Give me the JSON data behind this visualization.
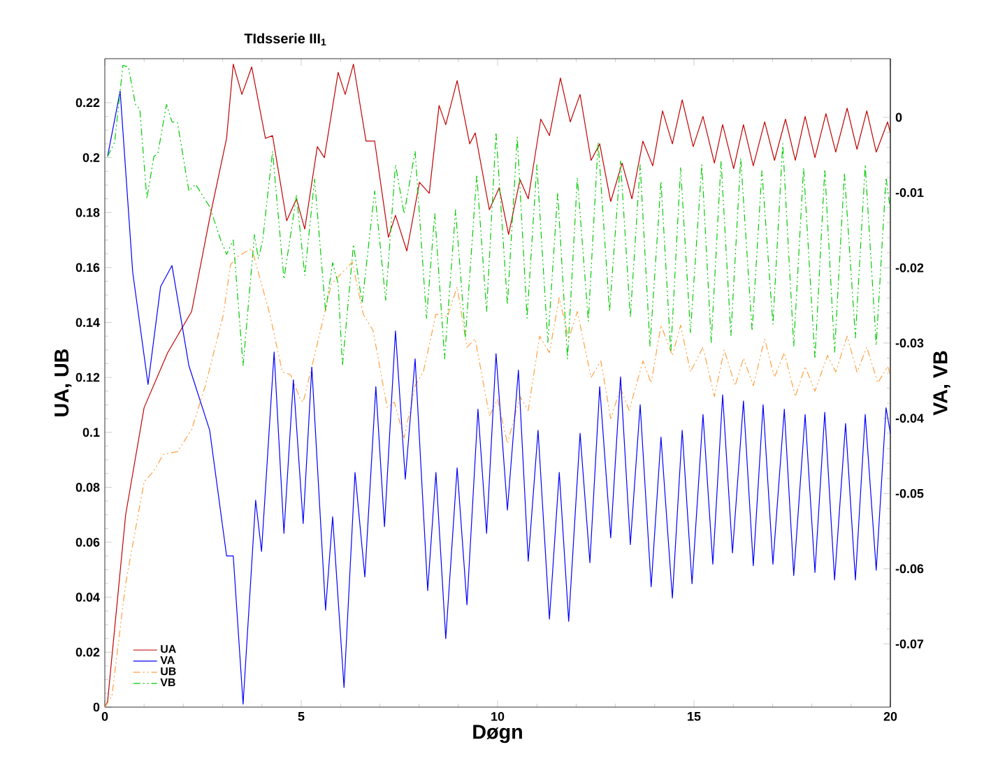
{
  "chart_data": {
    "type": "line",
    "title": "TIdsserie III$_{1}$",
    "xlabel": "Døgn",
    "ylabel": "UA, UB",
    "y2label": "VA, VB",
    "xlim": [
      0,
      20
    ],
    "ylim": [
      0,
      0.236
    ],
    "y2lim": [
      -0.0784,
      0.0078
    ],
    "xticks": [
      0,
      5,
      10,
      15,
      20
    ],
    "yticks": [
      0,
      0.02,
      0.04,
      0.06,
      0.08,
      0.1,
      0.12,
      0.14,
      0.16,
      0.18,
      0.2,
      0.22
    ],
    "y2ticks": [
      0,
      -0.01,
      -0.02,
      -0.03,
      -0.04,
      -0.05,
      -0.06,
      -0.07
    ],
    "legend": "bottom left",
    "series": [
      {
        "name": "UA",
        "color": "#c00000",
        "line_style": "solid",
        "x": [
          0,
          0.07,
          0.53,
          1.0,
          1.6,
          2.21,
          2.67,
          3.1,
          3.27,
          3.49,
          3.74,
          4.09,
          4.27,
          4.63,
          4.88,
          5.09,
          5.41,
          5.59,
          5.94,
          6.12,
          6.33,
          6.65,
          6.87,
          7.22,
          7.4,
          7.69,
          8.01,
          8.26,
          8.51,
          8.68,
          8.97,
          9.29,
          9.43,
          9.79,
          10.04,
          10.28,
          10.57,
          10.78,
          11.1,
          11.32,
          11.6,
          11.85,
          12.1,
          12.38,
          12.6,
          12.88,
          13.17,
          13.42,
          13.7,
          13.95,
          14.2,
          14.45,
          14.7,
          14.98,
          15.23,
          15.52,
          15.73,
          16.01,
          16.26,
          16.51,
          16.8,
          17.05,
          17.33,
          17.58,
          17.83,
          18.08,
          18.36,
          18.61,
          18.9,
          19.15,
          19.4,
          19.64,
          19.93,
          20.0
        ],
        "values": [
          0,
          0.002,
          0.07,
          0.109,
          0.129,
          0.144,
          0.178,
          0.207,
          0.234,
          0.223,
          0.233,
          0.207,
          0.208,
          0.177,
          0.185,
          0.174,
          0.204,
          0.2,
          0.231,
          0.223,
          0.234,
          0.206,
          0.206,
          0.171,
          0.179,
          0.166,
          0.191,
          0.187,
          0.219,
          0.212,
          0.228,
          0.205,
          0.209,
          0.181,
          0.189,
          0.172,
          0.192,
          0.185,
          0.214,
          0.208,
          0.229,
          0.213,
          0.223,
          0.199,
          0.205,
          0.184,
          0.198,
          0.185,
          0.206,
          0.197,
          0.217,
          0.205,
          0.221,
          0.204,
          0.215,
          0.198,
          0.212,
          0.196,
          0.212,
          0.197,
          0.213,
          0.199,
          0.214,
          0.199,
          0.215,
          0.2,
          0.216,
          0.202,
          0.218,
          0.203,
          0.217,
          0.202,
          0.213,
          0.209
        ]
      },
      {
        "name": "VA",
        "color": "#0000ff",
        "line_style": "solid",
        "axis": "y2",
        "x": [
          0.07,
          0.39,
          0.71,
          1.1,
          1.42,
          1.71,
          2.14,
          2.67,
          3.1,
          3.27,
          3.52,
          3.84,
          3.99,
          4.31,
          4.56,
          4.8,
          5.05,
          5.27,
          5.62,
          5.8,
          6.09,
          6.37,
          6.62,
          6.9,
          7.12,
          7.4,
          7.65,
          7.9,
          8.22,
          8.43,
          8.68,
          8.97,
          9.22,
          9.5,
          9.72,
          9.96,
          10.25,
          10.53,
          10.78,
          11.03,
          11.32,
          11.57,
          11.81,
          12.1,
          12.35,
          12.6,
          12.88,
          13.13,
          13.38,
          13.63,
          13.91,
          14.16,
          14.45,
          14.7,
          14.95,
          15.23,
          15.48,
          15.73,
          15.98,
          16.26,
          16.51,
          16.76,
          17.01,
          17.3,
          17.54,
          17.83,
          18.08,
          18.33,
          18.58,
          18.86,
          19.11,
          19.36,
          19.64,
          19.89,
          20.0
        ],
        "values": [
          -0.0052,
          0.0035,
          -0.0206,
          -0.0355,
          -0.0225,
          -0.0197,
          -0.033,
          -0.0416,
          -0.0583,
          -0.0583,
          -0.078,
          -0.0509,
          -0.0577,
          -0.0312,
          -0.0553,
          -0.0349,
          -0.054,
          -0.0332,
          -0.0655,
          -0.0531,
          -0.0758,
          -0.0472,
          -0.0611,
          -0.0358,
          -0.0544,
          -0.0284,
          -0.0481,
          -0.0321,
          -0.0629,
          -0.0472,
          -0.0693,
          -0.0466,
          -0.0648,
          -0.0388,
          -0.0553,
          -0.0314,
          -0.0522,
          -0.0336,
          -0.059,
          -0.0416,
          -0.0667,
          -0.0472,
          -0.067,
          -0.042,
          -0.0592,
          -0.0358,
          -0.0559,
          -0.0345,
          -0.0568,
          -0.0382,
          -0.0624,
          -0.0425,
          -0.0639,
          -0.0416,
          -0.062,
          -0.0395,
          -0.0594,
          -0.0369,
          -0.0579,
          -0.0377,
          -0.0596,
          -0.0382,
          -0.0594,
          -0.0388,
          -0.0609,
          -0.0395,
          -0.0605,
          -0.0392,
          -0.0615,
          -0.0407,
          -0.0615,
          -0.0395,
          -0.0602,
          -0.0386,
          -0.042
        ]
      },
      {
        "name": "UB",
        "color": "#ffa040",
        "line_style": "dashed",
        "x": [
          0,
          0.18,
          0.53,
          1.0,
          1.25,
          1.49,
          1.85,
          2.21,
          2.56,
          3.02,
          3.2,
          3.38,
          3.74,
          4.2,
          4.52,
          4.73,
          4.98,
          5.05,
          5.34,
          5.77,
          6.3,
          6.58,
          6.83,
          7.19,
          7.37,
          7.62,
          7.9,
          8.11,
          8.43,
          8.72,
          8.97,
          9.22,
          9.43,
          9.79,
          10.0,
          10.25,
          10.57,
          10.78,
          11.07,
          11.32,
          11.57,
          11.81,
          12.03,
          12.38,
          12.63,
          12.88,
          13.13,
          13.35,
          13.7,
          13.91,
          14.16,
          14.45,
          14.66,
          14.91,
          15.23,
          15.52,
          15.77,
          16.05,
          16.26,
          16.51,
          16.8,
          17.05,
          17.3,
          17.58,
          17.83,
          18.08,
          18.4,
          18.61,
          18.9,
          19.15,
          19.4,
          19.68,
          19.93,
          20.0
        ],
        "values": [
          0,
          0.004,
          0.045,
          0.082,
          0.086,
          0.092,
          0.093,
          0.101,
          0.117,
          0.143,
          0.161,
          0.164,
          0.167,
          0.143,
          0.122,
          0.121,
          0.112,
          0.111,
          0.128,
          0.154,
          0.162,
          0.143,
          0.137,
          0.109,
          0.111,
          0.098,
          0.117,
          0.122,
          0.143,
          0.142,
          0.153,
          0.131,
          0.134,
          0.106,
          0.112,
          0.096,
          0.113,
          0.108,
          0.135,
          0.129,
          0.149,
          0.134,
          0.144,
          0.12,
          0.126,
          0.105,
          0.116,
          0.108,
          0.126,
          0.118,
          0.139,
          0.128,
          0.139,
          0.122,
          0.131,
          0.113,
          0.13,
          0.117,
          0.127,
          0.117,
          0.134,
          0.12,
          0.129,
          0.113,
          0.124,
          0.115,
          0.128,
          0.122,
          0.135,
          0.122,
          0.131,
          0.118,
          0.124,
          0.121
        ]
      },
      {
        "name": "VB",
        "color": "#00cc00",
        "line_style": "dashed",
        "axis": "y2",
        "x": [
          0.07,
          0.25,
          0.46,
          0.6,
          0.78,
          0.89,
          1.07,
          1.25,
          1.35,
          1.57,
          1.71,
          1.85,
          2.14,
          2.31,
          2.67,
          2.95,
          3.1,
          3.27,
          3.52,
          3.81,
          3.91,
          4.02,
          4.27,
          4.56,
          4.88,
          5.09,
          5.34,
          5.62,
          5.8,
          5.94,
          6.05,
          6.33,
          6.55,
          6.87,
          7.15,
          7.4,
          7.62,
          7.9,
          8.19,
          8.4,
          8.65,
          8.93,
          9.18,
          9.47,
          9.72,
          9.96,
          10.25,
          10.5,
          10.75,
          11.0,
          11.28,
          11.53,
          11.78,
          12.03,
          12.31,
          12.56,
          12.85,
          13.13,
          13.38,
          13.63,
          13.88,
          14.16,
          14.41,
          14.66,
          14.91,
          15.2,
          15.44,
          15.69,
          15.94,
          16.19,
          16.48,
          16.73,
          17.01,
          17.26,
          17.54,
          17.79,
          18.08,
          18.33,
          18.58,
          18.83,
          19.11,
          19.36,
          19.64,
          19.89,
          20.0
        ],
        "values": [
          -0.0052,
          -0.0033,
          0.0069,
          0.0067,
          0.0017,
          0.0011,
          -0.0108,
          -0.0052,
          -0.0048,
          0.0017,
          -0.0006,
          -0.0007,
          -0.0098,
          -0.0089,
          -0.0119,
          -0.0163,
          -0.0182,
          -0.0163,
          -0.033,
          -0.0156,
          -0.0188,
          -0.0163,
          -0.0045,
          -0.0215,
          -0.0104,
          -0.021,
          -0.0082,
          -0.0258,
          -0.0193,
          -0.0221,
          -0.033,
          -0.0169,
          -0.0247,
          -0.0098,
          -0.0243,
          -0.0063,
          -0.0128,
          -0.0045,
          -0.0267,
          -0.0128,
          -0.0321,
          -0.0123,
          -0.0293,
          -0.0076,
          -0.0258,
          -0.002,
          -0.0249,
          -0.0026,
          -0.0267,
          -0.0063,
          -0.0299,
          -0.01,
          -0.0321,
          -0.008,
          -0.0271,
          -0.0033,
          -0.0258,
          -0.0058,
          -0.0266,
          -0.0063,
          -0.0304,
          -0.0085,
          -0.0312,
          -0.0067,
          -0.0286,
          -0.0063,
          -0.0299,
          -0.0058,
          -0.029,
          -0.0054,
          -0.0284,
          -0.0071,
          -0.0275,
          -0.0035,
          -0.0304,
          -0.0067,
          -0.0321,
          -0.0069,
          -0.0312,
          -0.0074,
          -0.0293,
          -0.0063,
          -0.0303,
          -0.008,
          -0.0123
        ]
      }
    ]
  }
}
